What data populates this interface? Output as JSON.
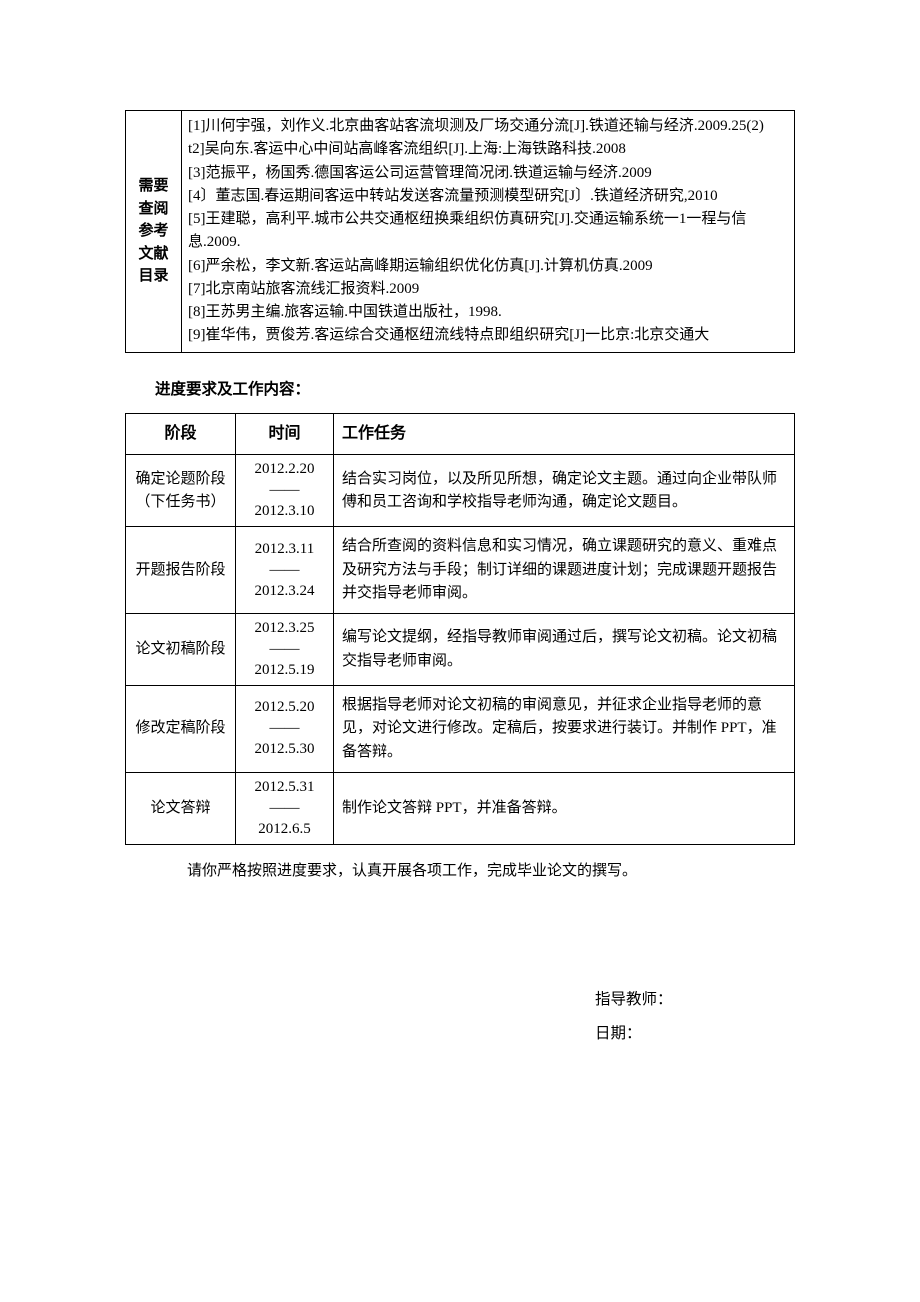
{
  "references": {
    "label": "需要\n查阅\n参考\n文献\n目录",
    "body": "[1]川何宇强，刘作义.北京曲客站客流坝测及厂场交通分流[J].铁道还输与经济.2009.25(2)\nt2]吴向东.客运中心中间站高峰客流组织[J].上海:上海铁路科技.2008\n[3]范振平，杨国秀.德国客运公司运营管理简况闭.铁道运输与经济.2009\n[4〕董志国.春运期间客运中转站发送客流量预测模型研究[J〕.铁道经济研究,2010\n[5]王建聪，高利平.城市公共交通枢纽换乘组织仿真研究[J].交通运输系统一1一程与信\n息.2009.\n[6]严余松，李文新.客运站高峰期运输组织优化仿真[J].计算机仿真.2009\n[7]北京南站旅客流线汇报资料.2009\n[8]王苏男主编.旅客运输.中国铁道出版社，1998.\n[9]崔华伟，贾俊芳.客运综合交通枢纽流线特点即组织研究[J]一比京:北京交通大"
  },
  "section_title": "进度要求及工作内容：",
  "schedule": {
    "headers": {
      "phase": "阶段",
      "time": "时间",
      "task": "工作任务"
    },
    "rows": [
      {
        "phase": "确定论题阶段\n（下任务书）",
        "time_from": "2012.2.20",
        "time_to": "2012.3.10",
        "task": "结合实习岗位，以及所见所想，确定论文主题。通过向企业带队师傅和员工咨询和学校指导老师沟通，确定论文题目。"
      },
      {
        "phase": "开题报告阶段",
        "time_from": "2012.3.11",
        "time_to": "2012.3.24",
        "task": "结合所查阅的资料信息和实习情况，确立课题研究的意义、重难点及研究方法与手段；制订详细的课题进度计划；完成课题开题报告并交指导老师审阅。"
      },
      {
        "phase": "论文初稿阶段",
        "time_from": "2012.3.25",
        "time_to": "2012.5.19",
        "task": "编写论文提纲，经指导教师审阅通过后，撰写论文初稿。论文初稿交指导老师审阅。"
      },
      {
        "phase": "修改定稿阶段",
        "time_from": "2012.5.20",
        "time_to": "2012.5.30",
        "task": "根据指导老师对论文初稿的审阅意见，并征求企业指导老师的意见，对论文进行修改。定稿后，按要求进行装订。并制作 PPT，准备答辩。"
      },
      {
        "phase": "论文答辩",
        "time_from": "2012.5.31",
        "time_to": "2012.6.5",
        "task": "制作论文答辩 PPT，并准备答辩。"
      }
    ]
  },
  "closing": "请你严格按照进度要求，认真开展各项工作，完成毕业论文的撰写。",
  "signature": {
    "teacher_label": "指导教师：",
    "date_label": "日期："
  },
  "dash": "——"
}
